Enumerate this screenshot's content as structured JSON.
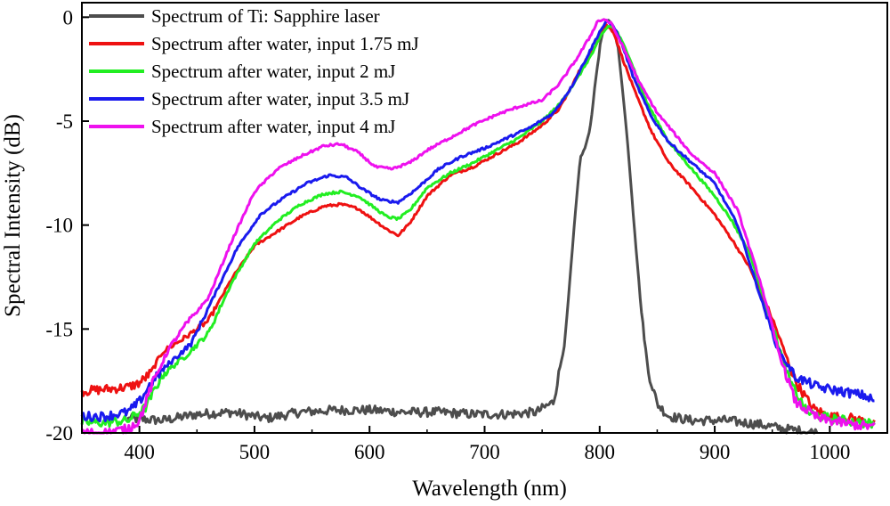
{
  "chart_data": {
    "type": "line",
    "xlabel": "Wavelength (nm)",
    "ylabel": "Spectral Intensity (dB)",
    "xlim": [
      350,
      1050
    ],
    "ylim": [
      -20,
      0.7
    ],
    "x_ticks": [
      400,
      500,
      600,
      700,
      800,
      900,
      1000
    ],
    "y_ticks": [
      -20,
      -15,
      -10,
      -5,
      0
    ],
    "x_tick_labels": [
      "400",
      "500",
      "600",
      "700",
      "800",
      "900",
      "1000"
    ],
    "y_tick_labels": [
      "-20",
      "-15",
      "-10",
      "-5",
      "0"
    ],
    "grid": false,
    "legend_position": "top-left",
    "series": [
      {
        "name": "Spectrum of Ti: Sapphire laser",
        "color": "#4d4d4d",
        "points": [
          [
            390,
            -19.3
          ],
          [
            420,
            -19.4
          ],
          [
            450,
            -19.1
          ],
          [
            480,
            -19.0
          ],
          [
            510,
            -19.3
          ],
          [
            540,
            -19.0
          ],
          [
            570,
            -18.9
          ],
          [
            600,
            -18.9
          ],
          [
            630,
            -19.0
          ],
          [
            660,
            -19.0
          ],
          [
            690,
            -19.1
          ],
          [
            720,
            -19.1
          ],
          [
            745,
            -19.0
          ],
          [
            760,
            -18.5
          ],
          [
            770,
            -15.5
          ],
          [
            778,
            -10.0
          ],
          [
            783,
            -6.8
          ],
          [
            788,
            -6.2
          ],
          [
            792,
            -5.2
          ],
          [
            797,
            -2.8
          ],
          [
            801,
            -1.1
          ],
          [
            805,
            -0.3
          ],
          [
            808,
            -0.1
          ],
          [
            812,
            -0.5
          ],
          [
            816,
            -1.5
          ],
          [
            820,
            -3.5
          ],
          [
            825,
            -6.5
          ],
          [
            830,
            -10.0
          ],
          [
            836,
            -14.0
          ],
          [
            842,
            -17.0
          ],
          [
            850,
            -18.6
          ],
          [
            860,
            -19.2
          ],
          [
            880,
            -19.4
          ],
          [
            910,
            -19.4
          ],
          [
            940,
            -19.6
          ],
          [
            960,
            -19.8
          ],
          [
            990,
            -20.0
          ]
        ]
      },
      {
        "name": "Spectrum after water, input 1.75 mJ",
        "color": "#ee1111",
        "points": [
          [
            350,
            -18.0
          ],
          [
            370,
            -17.9
          ],
          [
            390,
            -17.8
          ],
          [
            400,
            -17.6
          ],
          [
            410,
            -17.1
          ],
          [
            420,
            -16.1
          ],
          [
            440,
            -15.4
          ],
          [
            460,
            -14.6
          ],
          [
            480,
            -12.6
          ],
          [
            500,
            -11.0
          ],
          [
            520,
            -10.3
          ],
          [
            540,
            -9.6
          ],
          [
            560,
            -9.1
          ],
          [
            575,
            -9.0
          ],
          [
            590,
            -9.2
          ],
          [
            605,
            -9.8
          ],
          [
            615,
            -10.2
          ],
          [
            625,
            -10.5
          ],
          [
            635,
            -9.9
          ],
          [
            650,
            -8.6
          ],
          [
            670,
            -7.6
          ],
          [
            690,
            -7.2
          ],
          [
            710,
            -6.6
          ],
          [
            730,
            -6.0
          ],
          [
            750,
            -5.2
          ],
          [
            765,
            -4.4
          ],
          [
            775,
            -3.4
          ],
          [
            785,
            -2.3
          ],
          [
            795,
            -1.5
          ],
          [
            800,
            -0.9
          ],
          [
            806,
            -0.4
          ],
          [
            812,
            -0.7
          ],
          [
            820,
            -2.0
          ],
          [
            830,
            -3.5
          ],
          [
            845,
            -5.5
          ],
          [
            860,
            -7.0
          ],
          [
            880,
            -8.2
          ],
          [
            900,
            -9.5
          ],
          [
            915,
            -10.7
          ],
          [
            930,
            -12.0
          ],
          [
            950,
            -14.5
          ],
          [
            970,
            -17.5
          ],
          [
            985,
            -18.8
          ],
          [
            1000,
            -19.2
          ],
          [
            1020,
            -19.3
          ],
          [
            1040,
            -19.6
          ]
        ]
      },
      {
        "name": "Spectrum after water, input 2 mJ",
        "color": "#22ee22",
        "points": [
          [
            350,
            -19.5
          ],
          [
            370,
            -19.5
          ],
          [
            390,
            -19.4
          ],
          [
            405,
            -18.8
          ],
          [
            420,
            -17.2
          ],
          [
            440,
            -16.3
          ],
          [
            460,
            -15.2
          ],
          [
            480,
            -12.8
          ],
          [
            500,
            -10.9
          ],
          [
            520,
            -9.8
          ],
          [
            540,
            -9.0
          ],
          [
            560,
            -8.5
          ],
          [
            575,
            -8.4
          ],
          [
            590,
            -8.6
          ],
          [
            605,
            -9.2
          ],
          [
            615,
            -9.6
          ],
          [
            625,
            -9.7
          ],
          [
            635,
            -9.3
          ],
          [
            650,
            -8.2
          ],
          [
            670,
            -7.5
          ],
          [
            690,
            -7.0
          ],
          [
            710,
            -6.4
          ],
          [
            730,
            -5.8
          ],
          [
            750,
            -5.0
          ],
          [
            765,
            -4.2
          ],
          [
            780,
            -3.0
          ],
          [
            795,
            -1.6
          ],
          [
            802,
            -0.8
          ],
          [
            808,
            -0.4
          ],
          [
            814,
            -0.6
          ],
          [
            825,
            -1.8
          ],
          [
            840,
            -4.0
          ],
          [
            860,
            -6.0
          ],
          [
            880,
            -7.3
          ],
          [
            900,
            -8.6
          ],
          [
            915,
            -9.8
          ],
          [
            930,
            -11.3
          ],
          [
            950,
            -14.8
          ],
          [
            965,
            -17.5
          ],
          [
            980,
            -19.0
          ],
          [
            1000,
            -19.3
          ],
          [
            1040,
            -19.6
          ]
        ]
      },
      {
        "name": "Spectrum after water, input 3.5 mJ",
        "color": "#1a1aee",
        "points": [
          [
            350,
            -19.2
          ],
          [
            370,
            -19.2
          ],
          [
            390,
            -19.0
          ],
          [
            400,
            -18.5
          ],
          [
            410,
            -17.6
          ],
          [
            425,
            -16.7
          ],
          [
            445,
            -15.7
          ],
          [
            465,
            -13.4
          ],
          [
            485,
            -11.1
          ],
          [
            505,
            -9.5
          ],
          [
            525,
            -8.7
          ],
          [
            545,
            -8.0
          ],
          [
            565,
            -7.6
          ],
          [
            580,
            -7.7
          ],
          [
            595,
            -8.3
          ],
          [
            610,
            -8.8
          ],
          [
            625,
            -8.9
          ],
          [
            640,
            -8.3
          ],
          [
            660,
            -7.3
          ],
          [
            680,
            -6.7
          ],
          [
            700,
            -6.3
          ],
          [
            720,
            -5.8
          ],
          [
            740,
            -5.3
          ],
          [
            760,
            -4.6
          ],
          [
            775,
            -3.4
          ],
          [
            790,
            -1.8
          ],
          [
            800,
            -0.7
          ],
          [
            806,
            -0.2
          ],
          [
            812,
            -0.4
          ],
          [
            820,
            -1.4
          ],
          [
            830,
            -3.0
          ],
          [
            845,
            -4.8
          ],
          [
            860,
            -6.0
          ],
          [
            880,
            -7.0
          ],
          [
            900,
            -8.0
          ],
          [
            920,
            -10.0
          ],
          [
            940,
            -13.5
          ],
          [
            955,
            -16.0
          ],
          [
            970,
            -17.3
          ],
          [
            990,
            -17.8
          ],
          [
            1010,
            -18.0
          ],
          [
            1030,
            -18.2
          ],
          [
            1040,
            -18.5
          ]
        ]
      },
      {
        "name": "Spectrum after water, input 4 mJ",
        "color": "#ee11ee",
        "points": [
          [
            350,
            -20.0
          ],
          [
            370,
            -20.0
          ],
          [
            390,
            -19.8
          ],
          [
            400,
            -19.4
          ],
          [
            410,
            -17.8
          ],
          [
            425,
            -16.0
          ],
          [
            440,
            -14.8
          ],
          [
            460,
            -13.5
          ],
          [
            480,
            -10.8
          ],
          [
            500,
            -8.4
          ],
          [
            520,
            -7.3
          ],
          [
            540,
            -6.7
          ],
          [
            560,
            -6.2
          ],
          [
            575,
            -6.1
          ],
          [
            590,
            -6.5
          ],
          [
            605,
            -7.2
          ],
          [
            620,
            -7.3
          ],
          [
            635,
            -7.0
          ],
          [
            650,
            -6.4
          ],
          [
            670,
            -5.8
          ],
          [
            690,
            -5.2
          ],
          [
            710,
            -4.7
          ],
          [
            730,
            -4.3
          ],
          [
            750,
            -4.0
          ],
          [
            765,
            -3.2
          ],
          [
            780,
            -2.0
          ],
          [
            792,
            -0.9
          ],
          [
            798,
            -0.2
          ],
          [
            804,
            -0.1
          ],
          [
            810,
            -0.3
          ],
          [
            820,
            -1.4
          ],
          [
            835,
            -3.2
          ],
          [
            850,
            -4.6
          ],
          [
            865,
            -5.6
          ],
          [
            880,
            -6.6
          ],
          [
            900,
            -7.5
          ],
          [
            920,
            -9.3
          ],
          [
            940,
            -12.8
          ],
          [
            955,
            -16.0
          ],
          [
            970,
            -18.5
          ],
          [
            990,
            -19.3
          ],
          [
            1020,
            -19.6
          ],
          [
            1040,
            -19.7
          ]
        ]
      }
    ]
  }
}
